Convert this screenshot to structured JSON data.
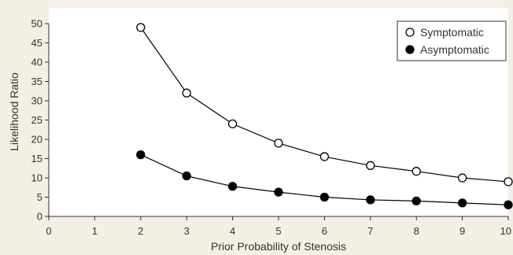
{
  "chart_data": {
    "type": "line",
    "title": "",
    "xlabel": "Prior Probability of Stenosis",
    "ylabel": "Likelihood Ratio",
    "xlim": [
      0,
      10
    ],
    "ylim": [
      0,
      50
    ],
    "x_ticks": [
      "0",
      "1",
      "2",
      "3",
      "4",
      "5",
      "6",
      "7",
      "8",
      "9",
      "10"
    ],
    "y_ticks": [
      "0",
      "5",
      "10",
      "15",
      "20",
      "25",
      "30",
      "35",
      "40",
      "45",
      "50"
    ],
    "grid": false,
    "legend_position": "top-right",
    "series": [
      {
        "name": "Symptomatic",
        "marker": "open-circle",
        "color": "#000000",
        "x": [
          2,
          3,
          4,
          5,
          6,
          7,
          8,
          9,
          10
        ],
        "y": [
          49,
          32,
          24,
          19,
          15.5,
          13.2,
          11.7,
          10,
          9
        ]
      },
      {
        "name": "Asymptomatic",
        "marker": "filled-circle",
        "color": "#000000",
        "x": [
          2,
          3,
          4,
          5,
          6,
          7,
          8,
          9,
          10
        ],
        "y": [
          16,
          10.5,
          7.8,
          6.3,
          5,
          4.3,
          4,
          3.5,
          3
        ]
      }
    ]
  },
  "colors": {
    "background": "#f4efe4",
    "plot_background": "#ffffff",
    "axis": "#333333",
    "line": "#000000"
  }
}
